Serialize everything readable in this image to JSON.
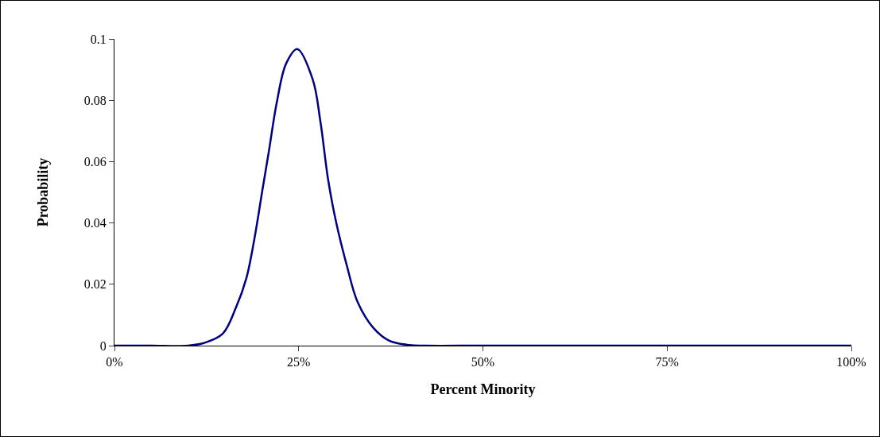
{
  "chart_data": {
    "type": "line",
    "xlabel": "Percent Minority",
    "ylabel": "Probability",
    "x": [
      0,
      5,
      10,
      12.2,
      14.7,
      16.5,
      17.9,
      19,
      20.06,
      20.96,
      22.04,
      23.3,
      24.8,
      26.9,
      27.95,
      29,
      30.1,
      31.5,
      33,
      35.2,
      37.3,
      40,
      42,
      50,
      75,
      100
    ],
    "series": [
      {
        "color": "#000080",
        "values": [
          0,
          0,
          0,
          0.0009,
          0.0039,
          0.0125,
          0.022,
          0.035,
          0.0505,
          0.0635,
          0.0795,
          0.092,
          0.0967,
          0.0868,
          0.073,
          0.054,
          0.04,
          0.0264,
          0.0142,
          0.0056,
          0.0016,
          0.0002,
          0,
          0,
          0,
          0
        ]
      }
    ],
    "xlim": [
      0,
      100
    ],
    "xticks": [
      {
        "value": 0,
        "label": "0%"
      },
      {
        "value": 25,
        "label": "25%"
      },
      {
        "value": 50,
        "label": "50%"
      },
      {
        "value": 75,
        "label": "75%"
      },
      {
        "value": 100,
        "label": "100%"
      }
    ],
    "ylim": [
      0,
      0.1
    ],
    "yticks": [
      0,
      0.02,
      0.04,
      0.06,
      0.08,
      0.1
    ],
    "grid": false,
    "marker": "none",
    "line_style": "solid"
  }
}
